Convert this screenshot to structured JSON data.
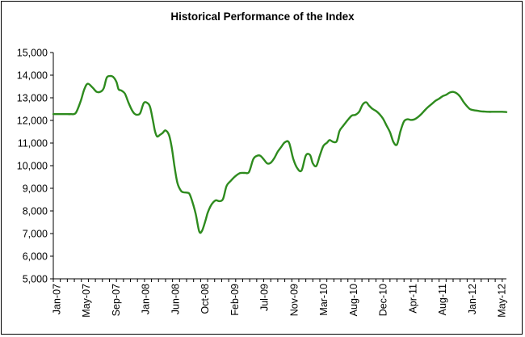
{
  "chart_data": {
    "type": "line",
    "title": "Historical Performance of the Index",
    "xlabel": "",
    "ylabel": "",
    "ylim": [
      5000,
      15000
    ],
    "yticks": [
      "5,000",
      "6,000",
      "7,000",
      "8,000",
      "9,000",
      "10,000",
      "11,000",
      "12,000",
      "13,000",
      "14,000",
      "15,000"
    ],
    "xticks": [
      "Jan-07",
      "May-07",
      "Sep-07",
      "Jan-08",
      "Jun-08",
      "Oct-08",
      "Feb-09",
      "Jul-09",
      "Nov-09",
      "Mar-10",
      "Aug-10",
      "Dec-10",
      "Apr-11",
      "Aug-11",
      "Jan-12",
      "May-12"
    ],
    "grid": false,
    "legend": "none",
    "line_color": "#2e8b1e",
    "series": [
      {
        "x": [
          0,
          0.3,
          0.6,
          0.9,
          1.3,
          1.8,
          2.5,
          3.2,
          3.9,
          4.4,
          4.9,
          5.6,
          6.2,
          6.8,
          7.2,
          7.6,
          8.0,
          8.5,
          9.0,
          9.3,
          9.7,
          10.2,
          10.7,
          11.2,
          11.6,
          12.0,
          12.4,
          12.9,
          13.4,
          13.8,
          14.2,
          14.5,
          14.8,
          15.2,
          15.6,
          16.0,
          16.5,
          16.9,
          17.3,
          17.7,
          18.2,
          18.6,
          19.0,
          19.4,
          19.8,
          20.3,
          20.8,
          21.2,
          21.7,
          22.0,
          22.4,
          22.8,
          23.2,
          23.7,
          24.2,
          24.7,
          25.3,
          25.9,
          26.6,
          27.3,
          27.9,
          28.5,
          29.0,
          29.5,
          30.0,
          30.5,
          31.0,
          31.5,
          32.0,
          32.5,
          33.0,
          33.6,
          34.2,
          34.8,
          35.4,
          36.0,
          36.6,
          37.0,
          37.5,
          38.0,
          38.5,
          39.0,
          39.4,
          39.9,
          40.4,
          40.8,
          41.3,
          41.7,
          42.2,
          42.6,
          43.1,
          43.6,
          44.1,
          44.6,
          45.0,
          45.5,
          46.0,
          46.5,
          47.0,
          47.5,
          48.0,
          48.5,
          49.0,
          49.5,
          50.0,
          50.5,
          51.0,
          51.5,
          52.0,
          52.5,
          53.0,
          53.5,
          54.0,
          54.5,
          55.0,
          55.5,
          56.0,
          56.5,
          57.0,
          57.5,
          58.0,
          58.5,
          59.0,
          59.4,
          59.8,
          60.2,
          60.6,
          61.0,
          61.5,
          62.0,
          62.5,
          63.0,
          63.5,
          64.0,
          64.6
        ],
        "values": [
          12280,
          12280,
          12280,
          12280,
          12280,
          12280,
          12280,
          12330,
          12850,
          13360,
          13620,
          13450,
          13260,
          13280,
          13430,
          13880,
          13960,
          13930,
          13700,
          13380,
          13320,
          13190,
          12800,
          12460,
          12290,
          12250,
          12330,
          12770,
          12770,
          12590,
          12000,
          11520,
          11290,
          11360,
          11450,
          11560,
          11350,
          10780,
          9920,
          9230,
          8890,
          8820,
          8810,
          8760,
          8430,
          7870,
          7100,
          7120,
          7580,
          7910,
          8200,
          8380,
          8470,
          8430,
          8530,
          9100,
          9330,
          9520,
          9670,
          9680,
          9720,
          10280,
          10430,
          10440,
          10280,
          10100,
          10130,
          10330,
          10620,
          10830,
          11030,
          11020,
          10310,
          9880,
          9790,
          10450,
          10470,
          10100,
          9990,
          10450,
          10870,
          11010,
          11130,
          11050,
          11080,
          11530,
          11750,
          11910,
          12100,
          12220,
          12250,
          12380,
          12700,
          12800,
          12660,
          12510,
          12420,
          12280,
          12080,
          11780,
          11480,
          11040,
          10940,
          11530,
          11960,
          12050,
          12020,
          12050,
          12150,
          12290,
          12460,
          12610,
          12740,
          12870,
          12960,
          13070,
          13130,
          13230,
          13260,
          13200,
          13050,
          12810,
          12620,
          12500,
          12460,
          12440,
          12420,
          12400,
          12390,
          12380,
          12380,
          12380,
          12380,
          12380,
          12370
        ]
      }
    ]
  }
}
